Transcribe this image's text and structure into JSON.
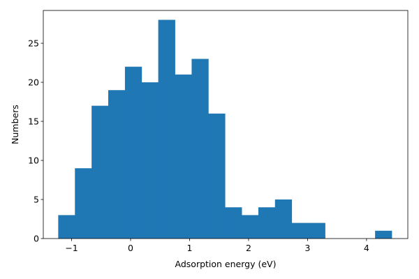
{
  "chart_data": {
    "type": "bar",
    "title": "",
    "xlabel": "Adsorption energy (eV)",
    "ylabel": "Numbers",
    "xlim": [
      -1.48,
      4.7
    ],
    "ylim": [
      0,
      29.2
    ],
    "xticks": [
      -1,
      0,
      1,
      2,
      3,
      4
    ],
    "xtick_labels": [
      "−1",
      "0",
      "1",
      "2",
      "3",
      "4"
    ],
    "yticks": [
      0,
      5,
      10,
      15,
      20,
      25
    ],
    "ytick_labels": [
      "0",
      "5",
      "10",
      "15",
      "20",
      "25"
    ],
    "grid": false,
    "legend": "none",
    "bar_color": "#1f77b4",
    "bin_width": 0.2827,
    "bins": [
      {
        "start": -1.227,
        "end": -0.944,
        "count": 3
      },
      {
        "start": -0.944,
        "end": -0.661,
        "count": 9
      },
      {
        "start": -0.661,
        "end": -0.379,
        "count": 17
      },
      {
        "start": -0.379,
        "end": -0.096,
        "count": 19
      },
      {
        "start": -0.096,
        "end": 0.187,
        "count": 22
      },
      {
        "start": 0.187,
        "end": 0.469,
        "count": 20
      },
      {
        "start": 0.469,
        "end": 0.752,
        "count": 28
      },
      {
        "start": 0.752,
        "end": 1.035,
        "count": 21
      },
      {
        "start": 1.035,
        "end": 1.318,
        "count": 23
      },
      {
        "start": 1.318,
        "end": 1.6,
        "count": 16
      },
      {
        "start": 1.6,
        "end": 1.883,
        "count": 4
      },
      {
        "start": 1.883,
        "end": 2.166,
        "count": 3
      },
      {
        "start": 2.166,
        "end": 2.448,
        "count": 4
      },
      {
        "start": 2.448,
        "end": 2.731,
        "count": 5
      },
      {
        "start": 2.731,
        "end": 3.014,
        "count": 2
      },
      {
        "start": 3.014,
        "end": 3.297,
        "count": 2
      },
      {
        "start": 3.297,
        "end": 3.579,
        "count": 0
      },
      {
        "start": 3.579,
        "end": 3.862,
        "count": 0
      },
      {
        "start": 3.862,
        "end": 4.145,
        "count": 0
      },
      {
        "start": 4.145,
        "end": 4.427,
        "count": 1
      }
    ]
  }
}
